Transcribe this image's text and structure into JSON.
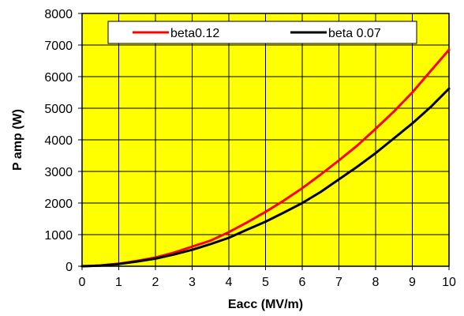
{
  "chart_data": {
    "type": "line",
    "title": "",
    "xlabel": "Eacc (MV/m)",
    "ylabel": "P amp (W)",
    "xlim": [
      0,
      10
    ],
    "ylim": [
      0,
      8000
    ],
    "x_ticks": [
      "0",
      "1",
      "2",
      "3",
      "4",
      "5",
      "6",
      "7",
      "8",
      "9",
      "10"
    ],
    "y_ticks": [
      "0",
      "1000",
      "2000",
      "3000",
      "4000",
      "5000",
      "6000",
      "7000",
      "8000"
    ],
    "grid": true,
    "plot_background": "#FFFF00",
    "legend_position": "top",
    "series": [
      {
        "name": "beta0.12",
        "color": "#FF0000",
        "points": [
          [
            0,
            0
          ],
          [
            0.5,
            25
          ],
          [
            1,
            80
          ],
          [
            1.5,
            170
          ],
          [
            2,
            275
          ],
          [
            2.5,
            430
          ],
          [
            3,
            620
          ],
          [
            3.5,
            810
          ],
          [
            4,
            1080
          ],
          [
            4.5,
            1390
          ],
          [
            5,
            1720
          ],
          [
            5.5,
            2080
          ],
          [
            6,
            2470
          ],
          [
            6.5,
            2900
          ],
          [
            7,
            3350
          ],
          [
            7.5,
            3820
          ],
          [
            8,
            4350
          ],
          [
            8.5,
            4900
          ],
          [
            9,
            5500
          ],
          [
            9.5,
            6180
          ],
          [
            10,
            6850
          ]
        ]
      },
      {
        "name": "beta 0.07",
        "color": "#000000",
        "points": [
          [
            0,
            0
          ],
          [
            0.5,
            20
          ],
          [
            1,
            70
          ],
          [
            1.5,
            150
          ],
          [
            2,
            240
          ],
          [
            2.5,
            370
          ],
          [
            3,
            520
          ],
          [
            3.5,
            700
          ],
          [
            4,
            900
          ],
          [
            4.5,
            1160
          ],
          [
            5,
            1410
          ],
          [
            5.5,
            1700
          ],
          [
            6,
            2000
          ],
          [
            6.5,
            2350
          ],
          [
            7,
            2750
          ],
          [
            7.5,
            3150
          ],
          [
            8,
            3580
          ],
          [
            8.5,
            4050
          ],
          [
            9,
            4520
          ],
          [
            9.5,
            5040
          ],
          [
            10,
            5620
          ]
        ]
      }
    ]
  }
}
